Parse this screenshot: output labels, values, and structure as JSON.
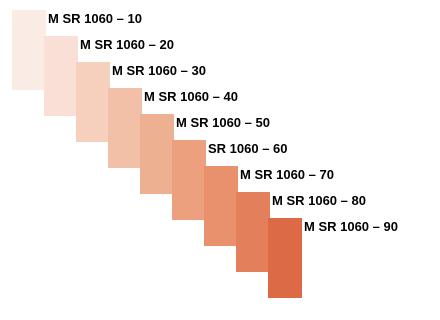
{
  "swatches": [
    {
      "label": "M SR 1060 – 10",
      "color": "#fbebe5"
    },
    {
      "label": "M SR 1060 – 20",
      "color": "#f9dfd5"
    },
    {
      "label": "M SR 1060 – 30",
      "color": "#f6d0bd"
    },
    {
      "label": "M SR 1060 – 40",
      "color": "#f1c0a6"
    },
    {
      "label": "M SR 1060 – 50",
      "color": "#edb090"
    },
    {
      "label": "SR 1060 – 60",
      "color": "#eca07e"
    },
    {
      "label": "M SR 1060 – 70",
      "color": "#e9906c"
    },
    {
      "label": "M SR 1060 – 80",
      "color": "#e37f5a"
    },
    {
      "label": "M SR 1060 – 90",
      "color": "#dd6a47"
    }
  ]
}
